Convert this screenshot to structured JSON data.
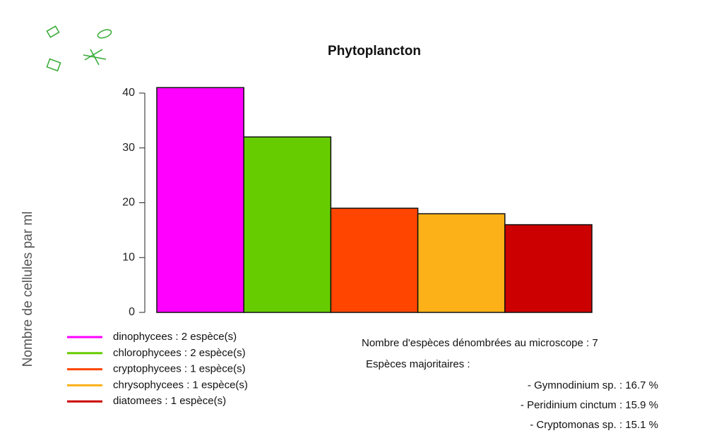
{
  "chart_data": {
    "type": "bar",
    "title": "Phytoplancton",
    "y_label": "Nombre de cellules par ml",
    "categories": [
      "dinophycees : 2 espèce(s)",
      "chlorophycees : 2 espèce(s)",
      "cryptophycees : 1 espèce(s)",
      "chrysophycees : 1 espèce(s)",
      "diatomees : 1 espèce(s)"
    ],
    "values": [
      41,
      32,
      19,
      18,
      16
    ],
    "colors": [
      "#ff00ff",
      "#66cc00",
      "#ff4500",
      "#fbb117",
      "#cc0000"
    ],
    "ylim": [
      0,
      40
    ],
    "yticks": [
      0,
      10,
      20,
      30,
      40
    ],
    "legend_position": "bottom-left",
    "annotations": {
      "count_note": "Nombre d'espèces dénombrées au microscope : 7",
      "major_header": "Espèces majoritaires :",
      "species": [
        {
          "text": "- Gymnodinium sp. : 16.7 %",
          "color": "#ff33ff"
        },
        {
          "text": "- Peridinium cinctum : 15.9 %",
          "color": "#ff33ff"
        },
        {
          "text": "- Cryptomonas sp. : 15.1 %",
          "color": "#ff5522"
        }
      ]
    }
  }
}
